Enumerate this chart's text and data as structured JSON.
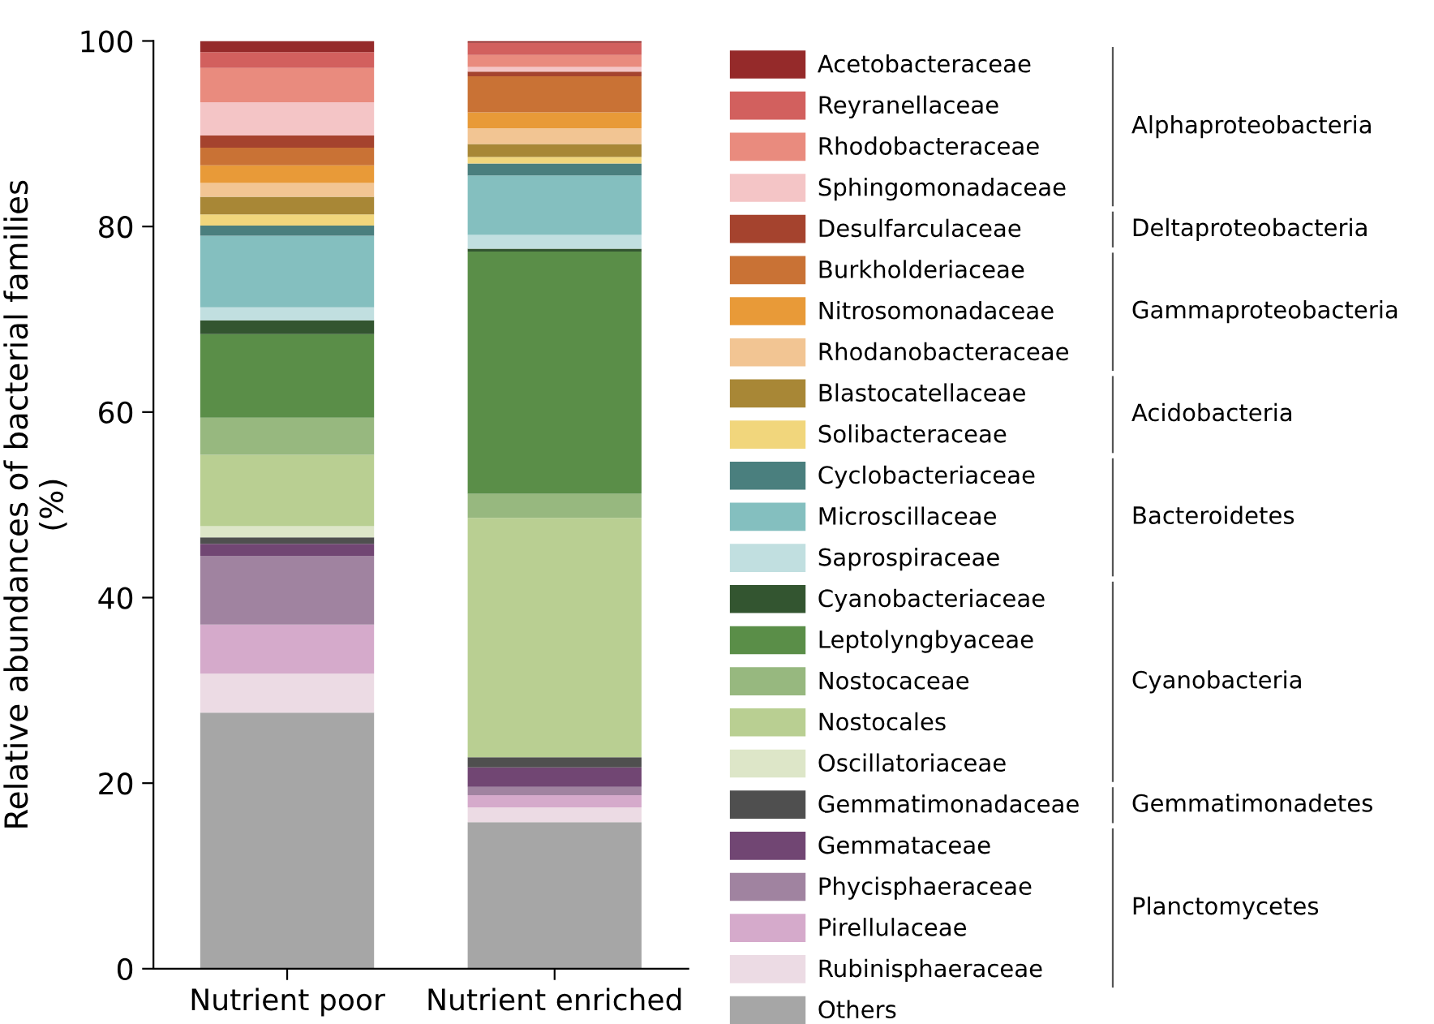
{
  "chart_data": {
    "type": "bar",
    "stacked": true,
    "ylabel": "Relative abundances of bacterial families\n(%)",
    "categories": [
      "Nutrient poor",
      "Nutrient enriched"
    ],
    "ylim": [
      0,
      100
    ],
    "yticks": [
      0,
      20,
      40,
      60,
      80,
      100
    ],
    "grid": false,
    "legend": "right",
    "series": [
      {
        "name": "Others",
        "color": "#a6a6a6",
        "values": [
          27.6,
          15.8
        ]
      },
      {
        "name": "Rubinisphaeraceae",
        "color": "#ecdbe4",
        "values": [
          4.2,
          1.6
        ]
      },
      {
        "name": "Pirellulaceae",
        "color": "#d5aacb",
        "values": [
          5.3,
          1.3
        ]
      },
      {
        "name": "Phycisphaeraceae",
        "color": "#a083a0",
        "values": [
          7.4,
          0.9
        ]
      },
      {
        "name": "Gemmataceae",
        "color": "#714673",
        "values": [
          1.3,
          2.1
        ]
      },
      {
        "name": "Gemmatimonadaceae",
        "color": "#4f4f4f",
        "values": [
          0.7,
          1.1
        ]
      },
      {
        "name": "Oscillatoriaceae",
        "color": "#dde6c8",
        "values": [
          1.2,
          0
        ]
      },
      {
        "name": "Nostocales",
        "color": "#b9cf92",
        "values": [
          7.7,
          25.8
        ]
      },
      {
        "name": "Nostocaceae",
        "color": "#97b87f",
        "values": [
          4.0,
          2.6
        ]
      },
      {
        "name": "Leptolyngbyaceae",
        "color": "#5a8e48",
        "values": [
          9.0,
          26.1
        ]
      },
      {
        "name": "Cyanobacteriaceae",
        "color": "#335530",
        "values": [
          1.5,
          0.3
        ]
      },
      {
        "name": "Saprospiraceae",
        "color": "#c1dfe0",
        "values": [
          1.4,
          1.5
        ]
      },
      {
        "name": "Microscillaceae",
        "color": "#84bfbf",
        "values": [
          7.7,
          6.4
        ]
      },
      {
        "name": "Cyclobacteriaceae",
        "color": "#4a7f7e",
        "values": [
          1.1,
          1.3
        ]
      },
      {
        "name": "Solibacteraceae",
        "color": "#f1d67c",
        "values": [
          1.2,
          0.7
        ]
      },
      {
        "name": "Blastocatellaceae",
        "color": "#a88736",
        "values": [
          1.9,
          1.4
        ]
      },
      {
        "name": "Rhodanobacteraceae",
        "color": "#f2c593",
        "values": [
          1.5,
          1.7
        ]
      },
      {
        "name": "Nitrosomonadaceae",
        "color": "#e89a38",
        "values": [
          1.9,
          1.7
        ]
      },
      {
        "name": "Burkholderiaceae",
        "color": "#c97235",
        "values": [
          1.9,
          3.9
        ]
      },
      {
        "name": "Desulfarculaceae",
        "color": "#a5432e",
        "values": [
          1.3,
          0.5
        ]
      },
      {
        "name": "Sphingomonadaceae",
        "color": "#f4c5c6",
        "values": [
          3.6,
          0.5
        ]
      },
      {
        "name": "Rhodobacteraceae",
        "color": "#e98b7e",
        "values": [
          3.7,
          1.3
        ]
      },
      {
        "name": "Reyranellaceae",
        "color": "#d2605e",
        "values": [
          1.7,
          1.3
        ]
      },
      {
        "name": "Acetobacteraceae",
        "color": "#952a2a",
        "values": [
          1.2,
          0.2
        ]
      }
    ],
    "annotations": [
      "Alphaproteobacteria",
      "Deltaproteobacteria",
      "Gammaproteobacteria",
      "Acidobacteria",
      "Bacteroidetes",
      "Cyanobacteria",
      "Gemmatimonadetes",
      "Planctomycetes"
    ]
  }
}
